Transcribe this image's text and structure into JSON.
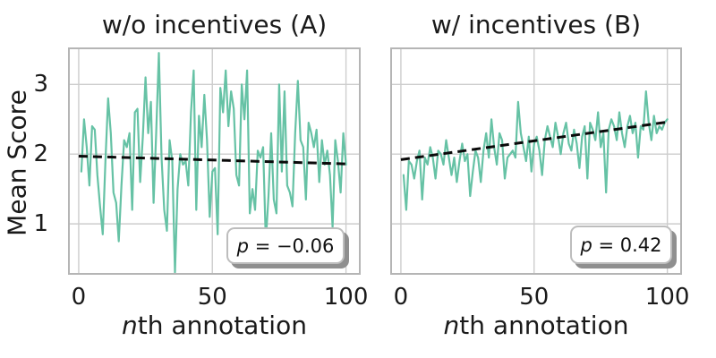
{
  "figure": {
    "ylabel": "Mean Score",
    "colors": {
      "line": "#66c2a5",
      "trend": "#0a0a0a",
      "grid": "#cdcdcd",
      "spine": "#b5b5b5",
      "text": "#1a1a1a",
      "box_border": "#bdbdbd",
      "box_shadow": "#8f8f8f",
      "background": "#ffffff"
    }
  },
  "chart_data": [
    {
      "type": "line",
      "title": "w/o incentives (A)",
      "xlabel": {
        "italic": "n",
        "rest": "th annotation"
      },
      "ylabel": "Mean Score",
      "xlim": [
        -4,
        105.5
      ],
      "ylim": [
        0.27,
        3.53
      ],
      "xticks": [
        0,
        50,
        100
      ],
      "yticks": [
        1,
        2,
        3
      ],
      "grid": true,
      "legend": "none",
      "annotation": {
        "var": "p",
        "rest": " = −0.06",
        "text": "p = −0.06"
      },
      "series": [
        {
          "name": "mean-score",
          "color": "#66c2a5",
          "x_start": 1,
          "values": [
            1.75,
            2.5,
            2.1,
            1.55,
            2.4,
            2.35,
            1.7,
            1.25,
            0.85,
            1.9,
            2.8,
            2.3,
            1.45,
            1.3,
            0.75,
            1.55,
            2.2,
            2.1,
            2.3,
            1.2,
            2.6,
            2.65,
            1.6,
            2.25,
            3.1,
            2.3,
            2.75,
            1.3,
            2.3,
            3.45,
            1.95,
            1.2,
            0.9,
            2.2,
            1.9,
            0.3,
            1.5,
            2.0,
            1.85,
            1.9,
            1.55,
            2.6,
            3.2,
            1.2,
            2.55,
            2.1,
            2.85,
            2.2,
            1.1,
            1.75,
            1.8,
            0.85,
            2.95,
            2.6,
            3.2,
            2.4,
            2.9,
            2.65,
            1.7,
            1.55,
            3.0,
            2.5,
            3.2,
            1.15,
            1.5,
            1.2,
            2.05,
            1.95,
            2.1,
            0.75,
            1.4,
            2.3,
            1.35,
            1.15,
            3.0,
            1.75,
            2.9,
            1.55,
            1.45,
            1.25,
            2.3,
            3.05,
            2.2,
            2.1,
            1.35,
            2.45,
            2.3,
            2.1,
            2.35,
            1.6,
            2.2,
            1.85,
            2.05,
            1.7,
            0.95,
            2.2,
            1.9,
            1.45,
            2.3,
            1.85
          ]
        },
        {
          "name": "trend",
          "color": "#0a0a0a",
          "dashed": true,
          "x": [
            0,
            100
          ],
          "values": [
            1.97,
            1.86
          ]
        }
      ]
    },
    {
      "type": "line",
      "title": "w/ incentives (B)",
      "xlabel": {
        "italic": "n",
        "rest": "th annotation"
      },
      "ylabel": "Mean Score",
      "xlim": [
        -4,
        105.5
      ],
      "ylim": [
        0.27,
        3.53
      ],
      "xticks": [
        0,
        50,
        100
      ],
      "yticks": [
        1,
        2,
        3
      ],
      "grid": true,
      "legend": "none",
      "annotation": {
        "var": "p",
        "rest": " = 0.42",
        "text": "p = 0.42"
      },
      "series": [
        {
          "name": "mean-score",
          "color": "#66c2a5",
          "x_start": 1,
          "values": [
            1.7,
            1.2,
            1.9,
            1.85,
            1.65,
            1.9,
            2.05,
            1.35,
            1.95,
            1.85,
            2.1,
            1.95,
            1.65,
            2.05,
            2.0,
            1.85,
            2.2,
            1.95,
            1.7,
            1.95,
            1.6,
            1.9,
            2.15,
            1.9,
            2.0,
            1.4,
            1.75,
            2.05,
            1.95,
            1.6,
            2.05,
            2.3,
            1.95,
            2.5,
            2.1,
            1.85,
            2.3,
            2.2,
            1.65,
            1.95,
            2.0,
            2.05,
            1.95,
            2.75,
            2.3,
            2.1,
            1.9,
            2.25,
            1.75,
            2.15,
            2.25,
            2.05,
            1.7,
            2.2,
            2.4,
            2.25,
            2.1,
            2.45,
            2.25,
            2.0,
            2.3,
            2.45,
            2.15,
            2.05,
            2.35,
            2.15,
            1.8,
            2.25,
            2.4,
            1.65,
            2.45,
            2.35,
            2.2,
            2.6,
            2.1,
            2.3,
            1.45,
            2.35,
            2.5,
            2.4,
            2.2,
            2.6,
            2.3,
            2.1,
            2.4,
            2.55,
            2.3,
            2.45,
            1.95,
            2.4,
            2.35,
            2.9,
            2.45,
            2.2,
            2.55,
            2.3,
            2.4,
            2.35,
            2.45,
            2.5
          ]
        },
        {
          "name": "trend",
          "color": "#0a0a0a",
          "dashed": true,
          "x": [
            0,
            100
          ],
          "values": [
            1.92,
            2.46
          ]
        }
      ]
    }
  ]
}
